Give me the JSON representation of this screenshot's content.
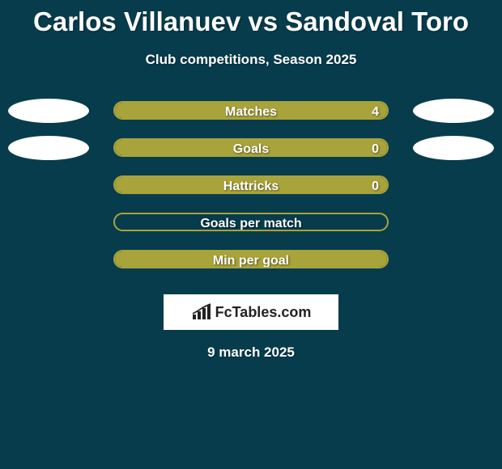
{
  "background_color": "#073c4c",
  "title": "Carlos Villanuev vs Sandoval Toro",
  "title_fontsize": 33,
  "title_color": "#ffffff",
  "subtitle": "Club competitions, Season 2025",
  "subtitle_fontsize": 17,
  "subtitle_color": "#ffffff",
  "ellipse_color": "#ffffff",
  "ellipse_width": 100,
  "ellipse_height": 30,
  "bar": {
    "container_width": 340,
    "container_height": 23,
    "fill_color_solid": "#a8a33a",
    "border_color": "#a8a33a",
    "hollow_bg": "transparent",
    "label_color": "#ffffff",
    "label_fontsize": 16,
    "radius": 12
  },
  "rows": [
    {
      "label": "Matches",
      "value": "4",
      "fill_pct": 100,
      "style": "solid",
      "show_left_ellipse": true,
      "show_right_ellipse": true,
      "show_value": true
    },
    {
      "label": "Goals",
      "value": "0",
      "fill_pct": 100,
      "style": "solid",
      "show_left_ellipse": true,
      "show_right_ellipse": true,
      "show_value": true
    },
    {
      "label": "Hattricks",
      "value": "0",
      "fill_pct": 100,
      "style": "solid",
      "show_left_ellipse": false,
      "show_right_ellipse": false,
      "show_value": true
    },
    {
      "label": "Goals per match",
      "value": "",
      "fill_pct": 100,
      "style": "hollow",
      "show_left_ellipse": false,
      "show_right_ellipse": false,
      "show_value": false
    },
    {
      "label": "Min per goal",
      "value": "",
      "fill_pct": 100,
      "style": "solid",
      "show_left_ellipse": false,
      "show_right_ellipse": false,
      "show_value": false
    }
  ],
  "logo": {
    "text": "FcTables.com",
    "fontsize": 18,
    "text_color": "#222222",
    "box_bg": "#ffffff"
  },
  "date": "9 march 2025",
  "date_fontsize": 17,
  "date_color": "#ffffff"
}
